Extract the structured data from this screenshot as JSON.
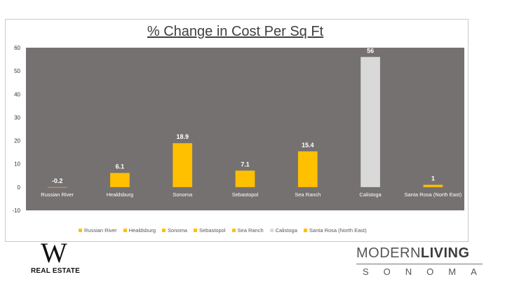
{
  "chart_data": {
    "type": "bar",
    "title": "% Change in Cost Per Sq Ft",
    "categories": [
      "Russian River",
      "Healdsburg",
      "Sonoma",
      "Sebastopol",
      "Sea Ranch",
      "Calistoga",
      "Santa Rosa (North East)"
    ],
    "values": [
      -0.2,
      6.1,
      18.9,
      7.1,
      15.4,
      56,
      1
    ],
    "data_labels": [
      "-0.2",
      "6.1",
      "18.9",
      "7.1",
      "15.4",
      "56",
      "1"
    ],
    "colors": [
      "#ffc000",
      "#ffc000",
      "#ffc000",
      "#ffc000",
      "#ffc000",
      "#d9d9d9",
      "#ffc000"
    ],
    "ylim": [
      -10,
      60
    ],
    "yticks": [
      -10,
      0,
      10,
      20,
      30,
      40,
      50,
      60
    ],
    "plot_background": "#767171",
    "grid": false,
    "legend_position": "bottom",
    "legend": [
      "Russian River",
      "Healdsburg",
      "Sonoma",
      "Sebastopol",
      "Sea Ranch",
      "Calistoga",
      "Santa Rosa (North East)"
    ],
    "xlabel": "",
    "ylabel": ""
  },
  "logos": {
    "left_letter": "W",
    "left_text": "REAL ESTATE",
    "right_top_thin": "MODERN",
    "right_top_bold": "LIVING",
    "right_bottom": "SONOMA"
  }
}
